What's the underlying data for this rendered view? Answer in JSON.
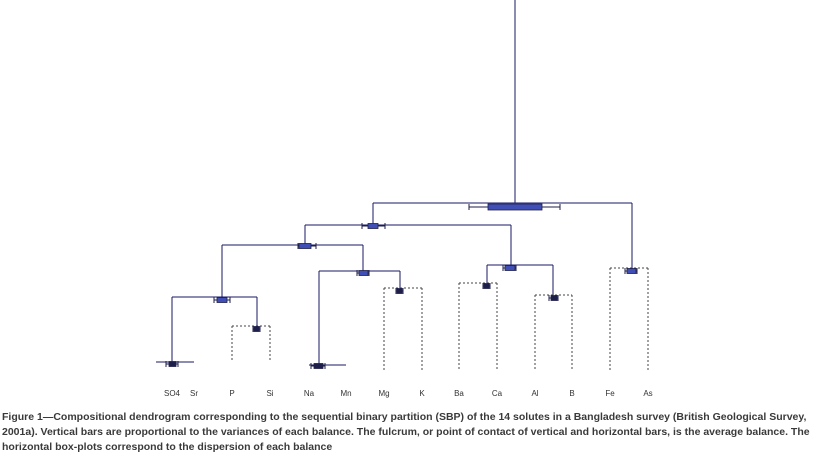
{
  "figure": {
    "caption": "Figure 1—Compositional dendrogram corresponding to the sequential binary partition (SBP) of the 14 solutes in a Bangladesh survey (British Geological Survey, 2001a). Vertical bars are proportional to the variances of each balance. The fulcrum, or point of contact of vertical and horizontal bars, is the average balance. The horizontal box-plots correspond to the dispersion of each balance"
  },
  "chart_data": {
    "type": "dendrogram",
    "leaves": [
      "SO4",
      "Sr",
      "P",
      "Si",
      "Na",
      "Mn",
      "Mg",
      "K",
      "Ba",
      "Ca",
      "Al",
      "B",
      "Fe",
      "As"
    ],
    "colors": {
      "line": "#1a1a66",
      "box_fill": "#3f4fb5",
      "box_dark": "#1e1e4a",
      "dotted": "#444444"
    }
  }
}
